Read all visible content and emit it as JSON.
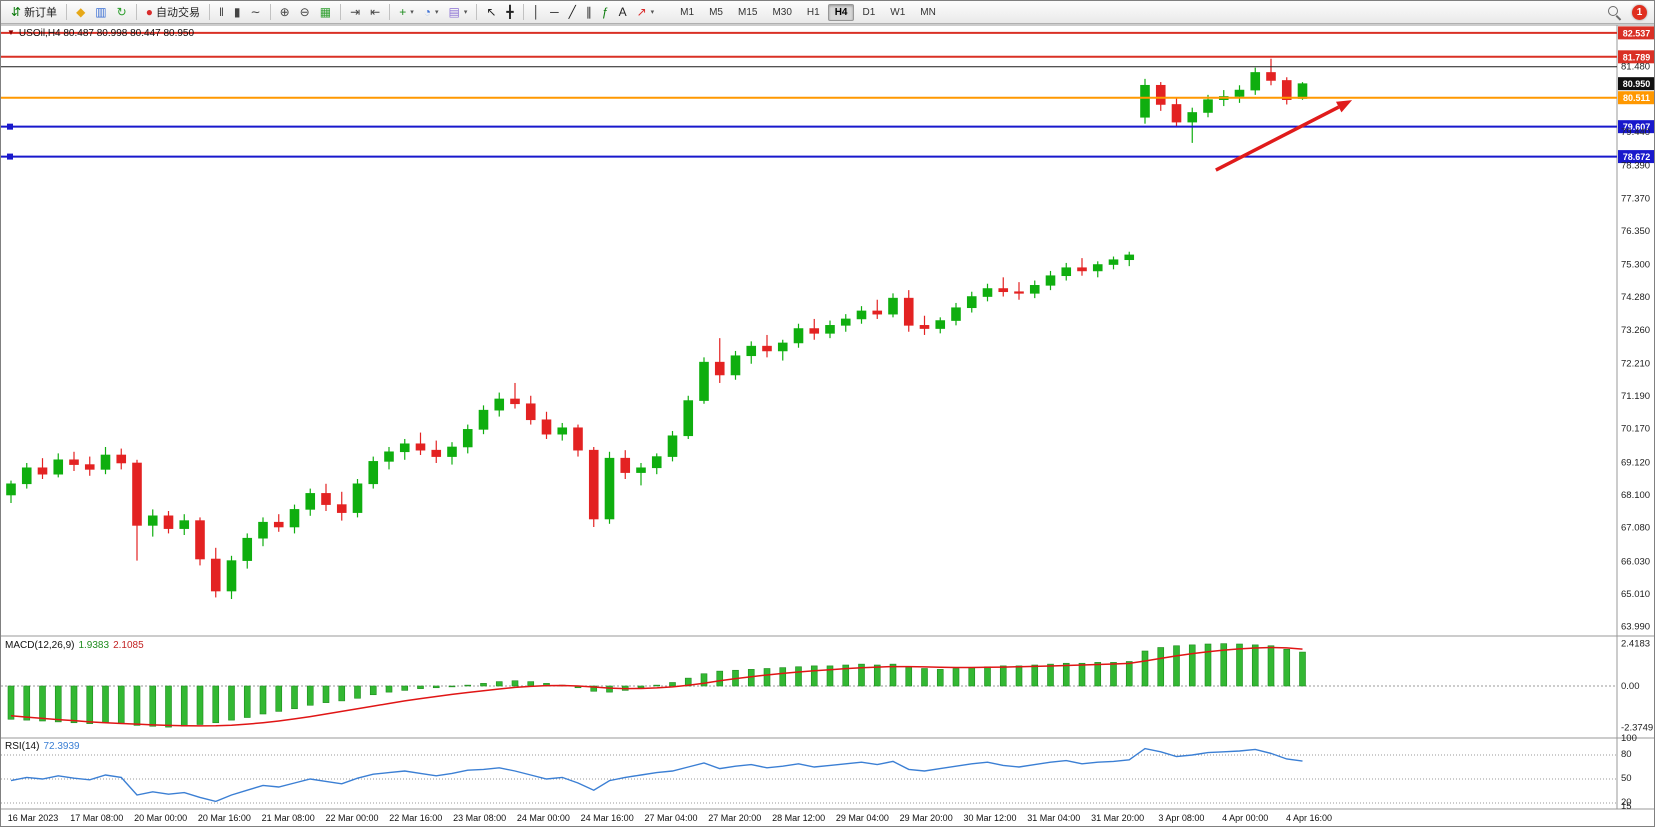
{
  "toolbar": {
    "badge": "1",
    "groups": [
      {
        "name": "order",
        "items": [
          {
            "name": "new-order-button",
            "glyph": "⇵",
            "glyph_color": "#0a7a0a",
            "label": "新订单"
          }
        ]
      },
      {
        "name": "windows",
        "items": [
          {
            "name": "metaeditor-icon",
            "glyph": "◆",
            "glyph_color": "#e6a817"
          },
          {
            "name": "new-chart-icon",
            "glyph": "▥",
            "glyph_color": "#3b6fd4"
          },
          {
            "name": "refresh-icon",
            "glyph": "↻",
            "glyph_color": "#2d9e2d"
          }
        ]
      },
      {
        "name": "autotrading",
        "items": [
          {
            "name": "autotrading-button",
            "glyph": "●",
            "glyph_color": "#d92b2b",
            "label": "自动交易"
          }
        ]
      },
      {
        "name": "chart-type",
        "items": [
          {
            "name": "bar-chart-icon",
            "glyph": "‖",
            "glyph_color": "#444444"
          },
          {
            "name": "candlestick-chart-icon",
            "glyph": "▮",
            "glyph_color": "#444444"
          },
          {
            "name": "line-chart-icon",
            "glyph": "∼",
            "glyph_color": "#444444"
          }
        ]
      },
      {
        "name": "zoom",
        "items": [
          {
            "name": "zoom-in-icon",
            "glyph": "⊕",
            "glyph_color": "#444444"
          },
          {
            "name": "zoom-out-icon",
            "glyph": "⊖",
            "glyph_color": "#444444"
          },
          {
            "name": "tile-windows-icon",
            "glyph": "▦",
            "glyph_color": "#2d9e2d"
          }
        ]
      },
      {
        "name": "scroll",
        "items": [
          {
            "name": "auto-scroll-icon",
            "glyph": "⇥",
            "glyph_color": "#444444"
          },
          {
            "name": "chart-shift-icon",
            "glyph": "⇤",
            "glyph_color": "#444444"
          }
        ]
      },
      {
        "name": "insert",
        "items": [
          {
            "name": "indicators-icon",
            "glyph": "+",
            "glyph_color": "#1e8c1e",
            "dropdown": true
          },
          {
            "name": "periods-icon",
            "glyph": "◔",
            "glyph_color": "#3b6fd4",
            "dropdown": true
          },
          {
            "name": "templates-icon",
            "glyph": "▤",
            "glyph_color": "#8a6fd4",
            "dropdown": true
          }
        ]
      },
      {
        "name": "cursor-tools",
        "items": [
          {
            "name": "cursor-icon",
            "glyph": "↖",
            "glyph_color": "#222222"
          },
          {
            "name": "crosshair-icon",
            "glyph": "╋",
            "glyph_color": "#222222"
          }
        ]
      },
      {
        "name": "draw-tools",
        "items": [
          {
            "name": "vertical-line-icon",
            "glyph": "│",
            "glyph_color": "#222222"
          },
          {
            "name": "horizontal-line-icon",
            "glyph": "─",
            "glyph_color": "#222222"
          },
          {
            "name": "trendline-icon",
            "glyph": "╱",
            "glyph_color": "#222222"
          },
          {
            "name": "channel-icon",
            "glyph": "∥",
            "glyph_color": "#222222"
          },
          {
            "name": "fibonacci-icon",
            "glyph": "ƒ",
            "glyph_color": "#0a7a0a"
          },
          {
            "name": "text-icon",
            "glyph": "A",
            "glyph_color": "#222222"
          },
          {
            "name": "arrows-icon",
            "glyph": "↗",
            "glyph_color": "#d92b2b",
            "dropdown": true
          }
        ]
      }
    ],
    "timeframes": [
      {
        "label": "M1"
      },
      {
        "label": "M5"
      },
      {
        "label": "M15"
      },
      {
        "label": "M30"
      },
      {
        "label": "H1"
      },
      {
        "label": "H4",
        "active": true
      },
      {
        "label": "D1"
      },
      {
        "label": "W1"
      },
      {
        "label": "MN"
      }
    ]
  },
  "chart_data": {
    "type": "candlestick",
    "symbol": "USOil",
    "period": "H4",
    "title": "USOil,H4 80.487 80.998 80.447 80.950",
    "current_price": 80.95,
    "colors": {
      "bull": "#0fae0f",
      "bear": "#e32222",
      "macd_hist": "#33b833",
      "macd_signal": "#e01515",
      "rsi_line": "#3b7fd4"
    },
    "price_axis_ticks": [
      "81.480",
      "79.440",
      "78.390",
      "77.370",
      "76.350",
      "75.300",
      "74.280",
      "73.260",
      "72.210",
      "71.190",
      "70.170",
      "69.120",
      "68.100",
      "67.080",
      "66.030",
      "65.010",
      "63.990"
    ],
    "horizontal_lines": [
      {
        "price": 82.537,
        "color": "#d93025",
        "label": "82.537",
        "width": 2
      },
      {
        "price": 81.789,
        "color": "#d93025",
        "label": "81.789",
        "width": 2
      },
      {
        "price": 81.48,
        "color": "#1a1a1a",
        "label": null,
        "width": 1
      },
      {
        "price": 80.511,
        "color": "#ff9800",
        "label": "80.511",
        "width": 2
      },
      {
        "price": 79.607,
        "color": "#1818cc",
        "label": "79.607",
        "width": 2,
        "handles": true
      },
      {
        "price": 78.672,
        "color": "#1818cc",
        "label": "78.672",
        "width": 2,
        "handles": true
      }
    ],
    "candles": [
      [
        68.1,
        68.55,
        67.85,
        68.45
      ],
      [
        68.45,
        69.1,
        68.3,
        68.95
      ],
      [
        68.95,
        69.25,
        68.6,
        68.75
      ],
      [
        68.75,
        69.4,
        68.65,
        69.2
      ],
      [
        69.2,
        69.45,
        68.85,
        69.05
      ],
      [
        69.05,
        69.3,
        68.7,
        68.9
      ],
      [
        68.9,
        69.6,
        68.75,
        69.35
      ],
      [
        69.35,
        69.55,
        68.9,
        69.1
      ],
      [
        69.1,
        69.2,
        66.05,
        67.15
      ],
      [
        67.15,
        67.65,
        66.8,
        67.45
      ],
      [
        67.45,
        67.6,
        66.9,
        67.05
      ],
      [
        67.05,
        67.5,
        66.85,
        67.3
      ],
      [
        67.3,
        67.4,
        65.9,
        66.1
      ],
      [
        66.1,
        66.45,
        64.9,
        65.1
      ],
      [
        65.1,
        66.2,
        64.85,
        66.05
      ],
      [
        66.05,
        66.9,
        65.8,
        66.75
      ],
      [
        66.75,
        67.4,
        66.5,
        67.25
      ],
      [
        67.25,
        67.5,
        66.95,
        67.1
      ],
      [
        67.1,
        67.8,
        66.9,
        67.65
      ],
      [
        67.65,
        68.3,
        67.45,
        68.15
      ],
      [
        68.15,
        68.45,
        67.6,
        67.8
      ],
      [
        67.8,
        68.2,
        67.3,
        67.55
      ],
      [
        67.55,
        68.6,
        67.4,
        68.45
      ],
      [
        68.45,
        69.3,
        68.3,
        69.15
      ],
      [
        69.15,
        69.6,
        68.9,
        69.45
      ],
      [
        69.45,
        69.85,
        69.2,
        69.7
      ],
      [
        69.7,
        70.05,
        69.35,
        69.5
      ],
      [
        69.5,
        69.8,
        69.1,
        69.3
      ],
      [
        69.3,
        69.75,
        69.05,
        69.6
      ],
      [
        69.6,
        70.3,
        69.4,
        70.15
      ],
      [
        70.15,
        70.9,
        70.0,
        70.75
      ],
      [
        70.75,
        71.3,
        70.55,
        71.1
      ],
      [
        71.1,
        71.6,
        70.8,
        70.95
      ],
      [
        70.95,
        71.2,
        70.3,
        70.45
      ],
      [
        70.45,
        70.7,
        69.85,
        70.0
      ],
      [
        70.0,
        70.35,
        69.8,
        70.2
      ],
      [
        70.2,
        70.3,
        69.3,
        69.5
      ],
      [
        69.5,
        69.6,
        67.1,
        67.35
      ],
      [
        67.35,
        69.45,
        67.2,
        69.25
      ],
      [
        69.25,
        69.5,
        68.6,
        68.8
      ],
      [
        68.8,
        69.1,
        68.4,
        68.95
      ],
      [
        68.95,
        69.4,
        68.75,
        69.3
      ],
      [
        69.3,
        70.1,
        69.15,
        69.95
      ],
      [
        69.95,
        71.2,
        69.85,
        71.05
      ],
      [
        71.05,
        72.4,
        70.95,
        72.25
      ],
      [
        72.25,
        73.0,
        71.6,
        71.85
      ],
      [
        71.85,
        72.6,
        71.7,
        72.45
      ],
      [
        72.45,
        72.9,
        72.2,
        72.75
      ],
      [
        72.75,
        73.1,
        72.4,
        72.6
      ],
      [
        72.6,
        72.95,
        72.3,
        72.85
      ],
      [
        72.85,
        73.45,
        72.7,
        73.3
      ],
      [
        73.3,
        73.6,
        72.95,
        73.15
      ],
      [
        73.15,
        73.55,
        73.0,
        73.4
      ],
      [
        73.4,
        73.75,
        73.2,
        73.6
      ],
      [
        73.6,
        74.0,
        73.45,
        73.85
      ],
      [
        73.85,
        74.2,
        73.6,
        73.75
      ],
      [
        73.75,
        74.4,
        73.65,
        74.25
      ],
      [
        74.25,
        74.5,
        73.2,
        73.4
      ],
      [
        73.4,
        73.7,
        73.1,
        73.3
      ],
      [
        73.3,
        73.65,
        73.15,
        73.55
      ],
      [
        73.55,
        74.1,
        73.4,
        73.95
      ],
      [
        73.95,
        74.45,
        73.8,
        74.3
      ],
      [
        74.3,
        74.7,
        74.15,
        74.55
      ],
      [
        74.55,
        74.9,
        74.3,
        74.45
      ],
      [
        74.45,
        74.75,
        74.2,
        74.4
      ],
      [
        74.4,
        74.8,
        74.25,
        74.65
      ],
      [
        74.65,
        75.1,
        74.5,
        74.95
      ],
      [
        74.95,
        75.35,
        74.8,
        75.2
      ],
      [
        75.2,
        75.5,
        74.95,
        75.1
      ],
      [
        75.1,
        75.4,
        74.9,
        75.3
      ],
      [
        75.3,
        75.55,
        75.15,
        75.45
      ],
      [
        75.45,
        75.7,
        75.25,
        75.6
      ],
      [
        79.9,
        81.1,
        79.7,
        80.9
      ],
      [
        80.9,
        81.0,
        80.1,
        80.3
      ],
      [
        80.3,
        80.5,
        79.6,
        79.75
      ],
      [
        79.75,
        80.2,
        79.1,
        80.05
      ],
      [
        80.05,
        80.6,
        79.9,
        80.45
      ],
      [
        80.45,
        80.75,
        80.25,
        80.55
      ],
      [
        80.55,
        80.9,
        80.35,
        80.75
      ],
      [
        80.75,
        81.45,
        80.6,
        81.3
      ],
      [
        81.3,
        81.73,
        80.9,
        81.05
      ],
      [
        81.05,
        81.15,
        80.3,
        80.45
      ],
      [
        80.487,
        80.998,
        80.447,
        80.95
      ]
    ],
    "time_labels": [
      "16 Mar 2023",
      "17 Mar 08:00",
      "20 Mar 00:00",
      "20 Mar 16:00",
      "21 Mar 08:00",
      "22 Mar 00:00",
      "22 Mar 16:00",
      "23 Mar 08:00",
      "24 Mar 00:00",
      "24 Mar 16:00",
      "27 Mar 04:00",
      "27 Mar 20:00",
      "28 Mar 12:00",
      "29 Mar 04:00",
      "29 Mar 20:00",
      "30 Mar 12:00",
      "31 Mar 04:00",
      "31 Mar 20:00",
      "3 Apr 08:00",
      "4 Apr 00:00",
      "4 Apr 16:00"
    ],
    "macd": {
      "label": "MACD(12,26,9)",
      "value_main": "1.9383",
      "value_signal": "2.1085",
      "axis": [
        "2.4183",
        "0.00",
        "-2.3749"
      ],
      "hist": [
        -1.9,
        -1.95,
        -2.0,
        -2.05,
        -2.1,
        -2.15,
        -2.1,
        -2.15,
        -2.25,
        -2.3,
        -2.35,
        -2.3,
        -2.2,
        -2.1,
        -1.95,
        -1.8,
        -1.6,
        -1.45,
        -1.3,
        -1.1,
        -0.95,
        -0.85,
        -0.7,
        -0.5,
        -0.35,
        -0.25,
        -0.15,
        -0.1,
        -0.05,
        0.05,
        0.15,
        0.25,
        0.3,
        0.25,
        0.15,
        0.05,
        -0.1,
        -0.3,
        -0.35,
        -0.25,
        -0.1,
        0.05,
        0.2,
        0.45,
        0.7,
        0.85,
        0.9,
        0.95,
        1.0,
        1.05,
        1.1,
        1.15,
        1.15,
        1.2,
        1.25,
        1.2,
        1.25,
        1.1,
        1.0,
        0.95,
        1.0,
        1.05,
        1.1,
        1.15,
        1.15,
        1.2,
        1.25,
        1.3,
        1.3,
        1.35,
        1.35,
        1.4,
        2.0,
        2.2,
        2.3,
        2.35,
        2.4,
        2.42,
        2.4,
        2.35,
        2.3,
        2.1,
        1.9383
      ],
      "signal": [
        -1.7,
        -1.78,
        -1.85,
        -1.92,
        -1.98,
        -2.05,
        -2.1,
        -2.14,
        -2.18,
        -2.22,
        -2.25,
        -2.27,
        -2.28,
        -2.27,
        -2.24,
        -2.18,
        -2.1,
        -2.0,
        -1.88,
        -1.75,
        -1.6,
        -1.45,
        -1.3,
        -1.15,
        -1.0,
        -0.85,
        -0.72,
        -0.6,
        -0.48,
        -0.37,
        -0.27,
        -0.17,
        -0.08,
        -0.02,
        0.02,
        0.03,
        0.0,
        -0.06,
        -0.12,
        -0.15,
        -0.14,
        -0.11,
        -0.05,
        0.04,
        0.16,
        0.3,
        0.42,
        0.53,
        0.63,
        0.72,
        0.8,
        0.87,
        0.93,
        0.99,
        1.04,
        1.08,
        1.11,
        1.11,
        1.09,
        1.07,
        1.06,
        1.06,
        1.07,
        1.08,
        1.1,
        1.12,
        1.14,
        1.17,
        1.2,
        1.23,
        1.26,
        1.29,
        1.43,
        1.58,
        1.72,
        1.85,
        1.96,
        2.05,
        2.12,
        2.17,
        2.2,
        2.18,
        2.1085
      ]
    },
    "rsi": {
      "label": "RSI(14)",
      "value": "72.3939",
      "axis": [
        "100",
        "80",
        "50",
        "20",
        "15"
      ],
      "levels": [
        80,
        50,
        20
      ],
      "values": [
        48,
        52,
        50,
        54,
        51,
        49,
        55,
        52,
        30,
        34,
        31,
        33,
        27,
        22,
        30,
        36,
        42,
        40,
        45,
        50,
        47,
        44,
        51,
        56,
        58,
        60,
        57,
        54,
        57,
        61,
        62,
        64,
        60,
        55,
        50,
        52,
        45,
        36,
        48,
        52,
        55,
        58,
        60,
        65,
        70,
        63,
        66,
        68,
        64,
        66,
        69,
        65,
        67,
        69,
        71,
        68,
        72,
        62,
        60,
        63,
        66,
        69,
        71,
        67,
        65,
        68,
        71,
        73,
        69,
        71,
        72,
        74,
        88,
        84,
        78,
        80,
        83,
        84,
        85,
        87,
        82,
        75,
        72.39
      ]
    },
    "arrow": {
      "from": {
        "bar": 76.5,
        "price": 78.25
      },
      "to": {
        "bar": 84.3,
        "price": 80.22
      },
      "color": "#e01b1b"
    }
  }
}
